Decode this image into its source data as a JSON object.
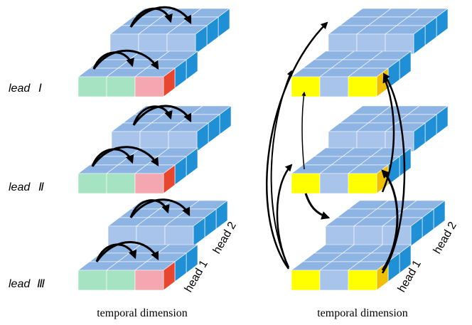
{
  "left_panel": {
    "leads": [
      {
        "prefix": "lead",
        "numeral": "Ⅰ"
      },
      {
        "prefix": "lead",
        "numeral": "Ⅱ"
      },
      {
        "prefix": "lead",
        "numeral": "Ⅲ"
      }
    ],
    "head_labels": [
      "head 1",
      "head 2"
    ],
    "caption": "temporal dimension"
  },
  "right_panel": {
    "head_labels": [
      "head 1",
      "head 2"
    ],
    "caption": "temporal dimension"
  },
  "colors": {
    "cube_front": "#a9c4eb",
    "cube_top": "#8eb4e3",
    "cube_side": "#1f8fd6",
    "green_front": "#a6e3c2",
    "green_side": "#00a651",
    "pink_front": "#f4a7b0",
    "pink_side": "#e8472f",
    "yellow_front": "#ffff00",
    "yellow_side": "#f0c000",
    "arrow": "#000000"
  }
}
